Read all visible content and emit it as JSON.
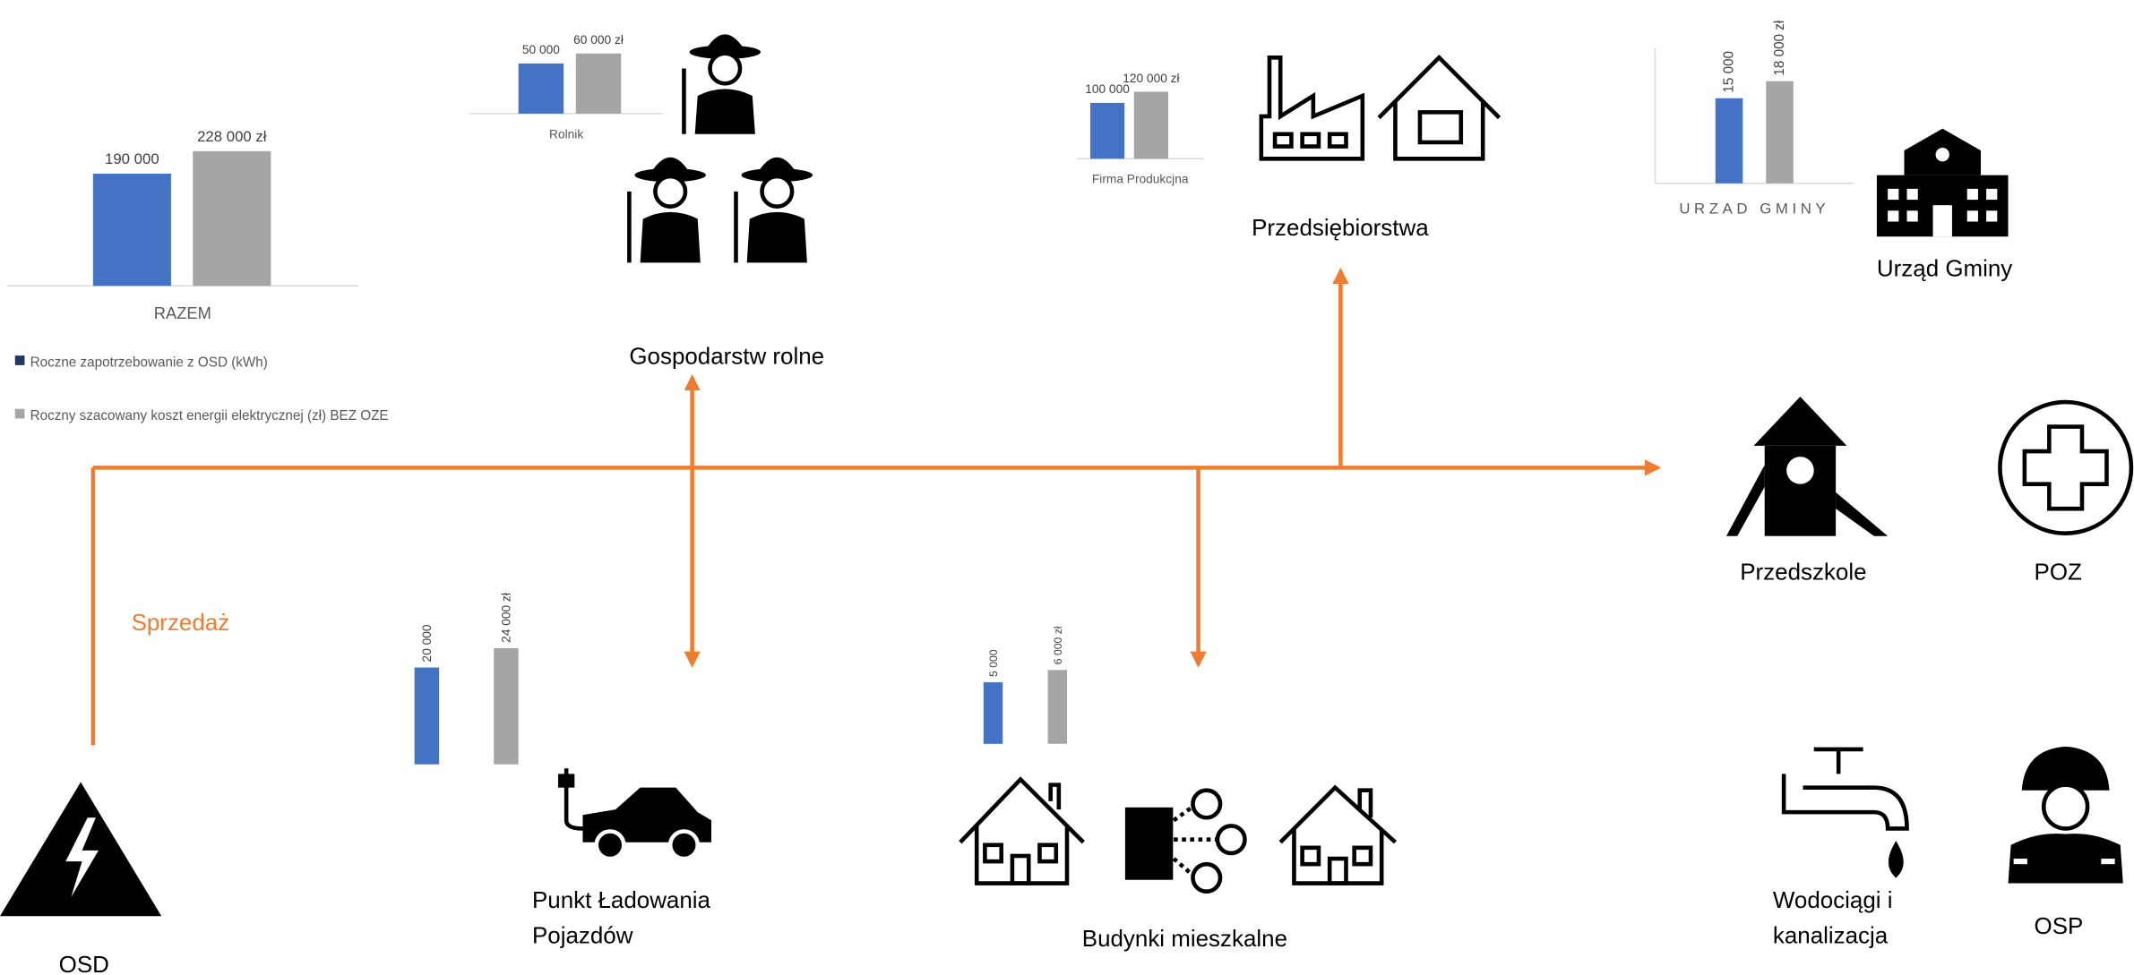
{
  "chart_data": [
    {
      "type": "bar",
      "category": "RAZEM",
      "values": [
        190000,
        228000
      ],
      "value_labels": [
        "190 000",
        "228 000 zł"
      ],
      "colors": [
        "#4472c4",
        "#a5a5a5"
      ],
      "ylim": [
        0,
        250000
      ]
    },
    {
      "type": "bar",
      "category": "Rolnik",
      "values": [
        50000,
        60000
      ],
      "value_labels": [
        "50 000",
        "60 000 zł"
      ],
      "colors": [
        "#4472c4",
        "#a5a5a5"
      ],
      "ylim": [
        0,
        60000
      ]
    },
    {
      "type": "bar",
      "category": "Firma Produkcjna",
      "values": [
        100000,
        120000
      ],
      "value_labels": [
        "100 000",
        "120 000 zł"
      ],
      "colors": [
        "#4472c4",
        "#a5a5a5"
      ],
      "ylim": [
        0,
        120000
      ]
    },
    {
      "type": "bar",
      "category": "URZAD GMINY",
      "values": [
        15000,
        18000
      ],
      "value_labels": [
        "15 000",
        "18 000 zł"
      ],
      "colors": [
        "#4472c4",
        "#a5a5a5"
      ],
      "ylim": [
        0,
        20000
      ]
    },
    {
      "type": "bar",
      "values": [
        20000,
        24000
      ],
      "value_labels": [
        "20 000",
        "24 000 zł"
      ],
      "colors": [
        "#4472c4",
        "#a5a5a5"
      ],
      "ylim": [
        0,
        24000
      ]
    },
    {
      "type": "bar",
      "values": [
        5000,
        6000
      ],
      "value_labels": [
        "5 000",
        "6 000 zł"
      ],
      "colors": [
        "#4472c4",
        "#a5a5a5"
      ],
      "ylim": [
        0,
        6000
      ]
    }
  ],
  "legend": [
    "Roczne zapotrzebowanie z OSD (kWh)",
    "Roczny szacowany koszt energii elektrycznej (zł) BEZ OZE"
  ],
  "flow_label": "Sprzedaż",
  "nodes": {
    "farms": "Gospodarstw rolne",
    "companies": "Przedsiębiorstwa",
    "office": "Urząd Gminy",
    "preschool": "Przedszkole",
    "clinic": "POZ",
    "charging": [
      "Punkt Ładowania",
      "Pojazdów"
    ],
    "housing": "Budynki mieszkalne",
    "water": [
      "Wodociągi i",
      "kanalizacja"
    ],
    "fire": "OSP",
    "grid": "OSD"
  }
}
